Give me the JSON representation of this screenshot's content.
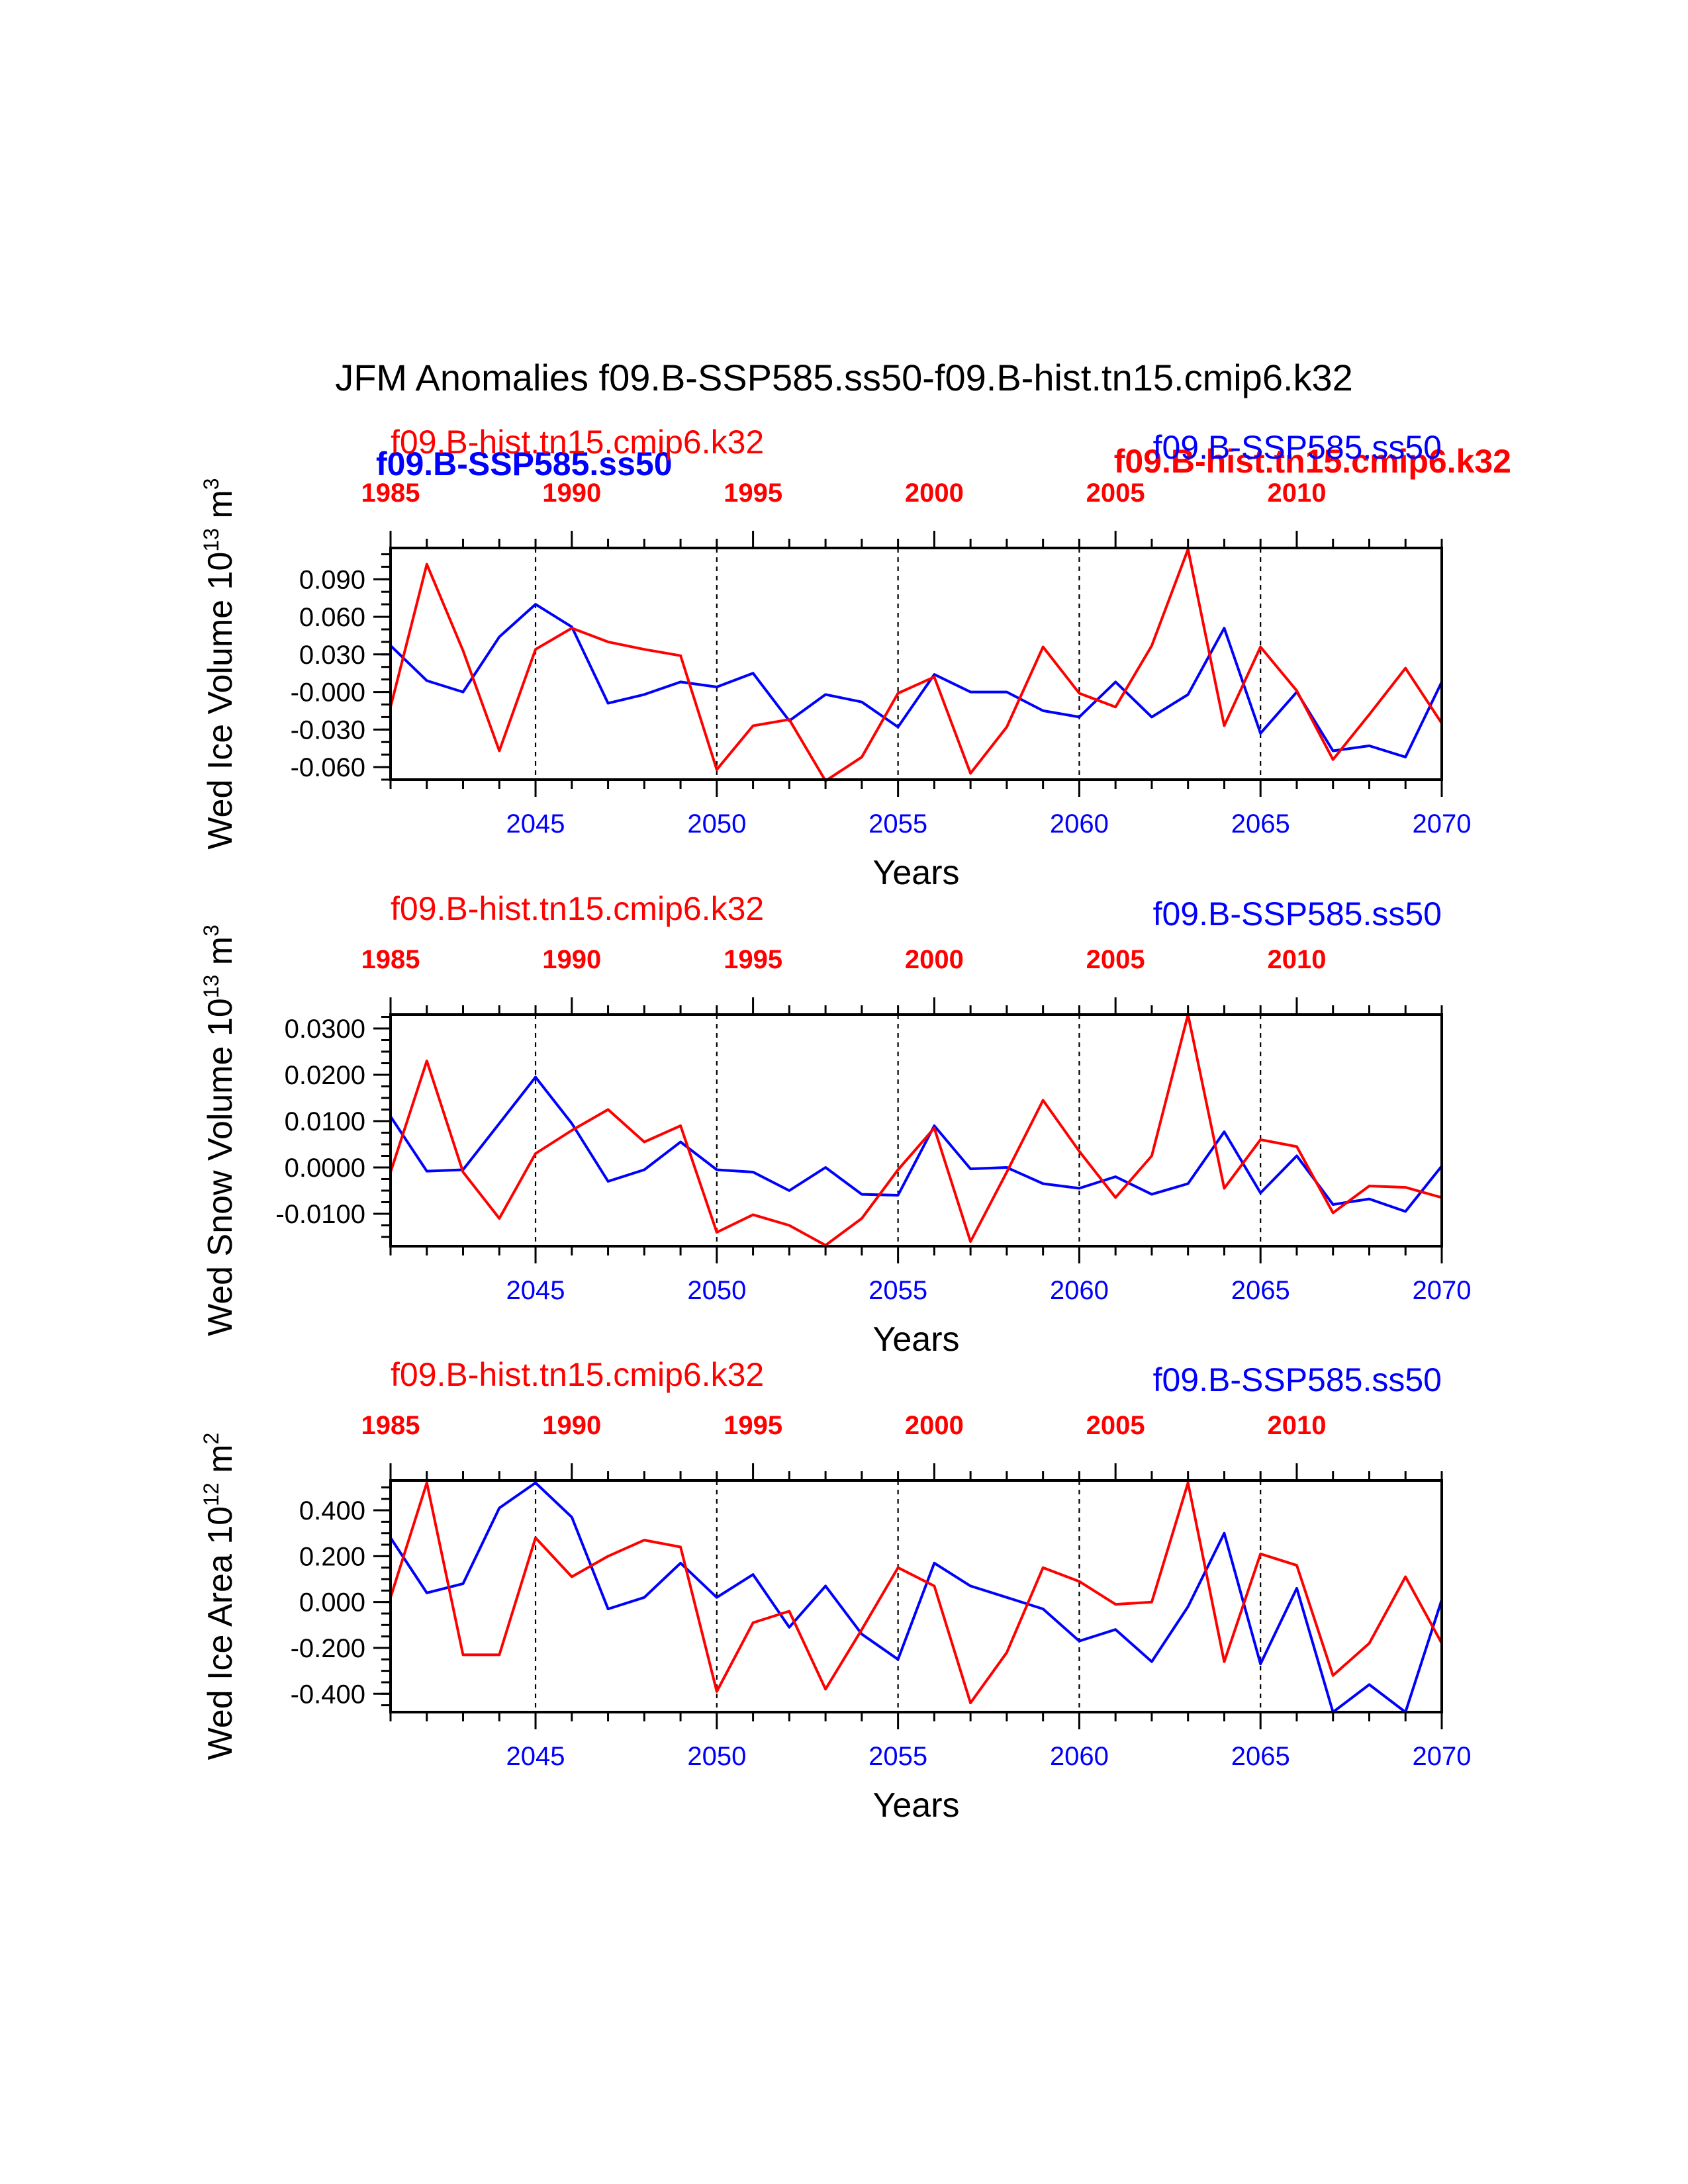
{
  "title": "JFM Anomalies f09.B-SSP585.ss50-f09.B-hist.tn15.cmip6.k32",
  "colors": {
    "hist": "#ff0000",
    "ssp": "#0000ff",
    "axis": "#000000"
  },
  "overlap_labels": {
    "ssp": "f09.B-SSP585.ss50",
    "hist": "f09.B-hist.tn15.cmip6.k32"
  },
  "chart_data": [
    {
      "type": "line",
      "ylabel": "Wed Ice Volume 10",
      "ylabel_sup": "13",
      "ylabel_unit": " m",
      "ylabel_unit_sup": "3",
      "xlabel": "Years",
      "xlim": [
        2041,
        2070
      ],
      "ylim": [
        -0.07,
        0.115
      ],
      "top_xlim": [
        1985,
        2014
      ],
      "x_ticks": [
        2045,
        2050,
        2055,
        2060,
        2065,
        2070
      ],
      "x_tick_labels": [
        "2045",
        "2050",
        "2055",
        "2060",
        "2065",
        "2070"
      ],
      "top_ticks": [
        1985,
        1990,
        1995,
        2000,
        2005,
        2010
      ],
      "top_tick_labels": [
        "1985",
        "1990",
        "1995",
        "2000",
        "2005",
        "2010"
      ],
      "y_ticks": [
        0.09,
        0.06,
        0.03,
        0.0,
        -0.03,
        -0.06
      ],
      "y_tick_labels": [
        "0.090",
        "0.060",
        "0.030",
        "-0.000",
        "-0.030",
        "-0.060"
      ],
      "y_minor_step": 0.01,
      "left_label": "f09.B-hist.tn15.cmip6.k32",
      "right_label": "f09.B-SSP585.ss50",
      "series": [
        {
          "name": "f09.B-SSP585.ss50",
          "color": "#0000ff",
          "x": [
            2041,
            2042,
            2043,
            2044,
            2045,
            2046,
            2047,
            2048,
            2049,
            2050,
            2051,
            2052,
            2053,
            2054,
            2055,
            2056,
            2057,
            2058,
            2059,
            2060,
            2061,
            2062,
            2063,
            2064,
            2065,
            2066,
            2067,
            2068,
            2069,
            2070
          ],
          "values": [
            0.037,
            0.009,
            0.0,
            0.044,
            0.07,
            0.052,
            -0.009,
            -0.002,
            0.008,
            0.004,
            0.015,
            -0.023,
            -0.002,
            -0.008,
            -0.028,
            0.014,
            0.0,
            0.0,
            -0.015,
            -0.02,
            0.008,
            -0.02,
            -0.002,
            0.051,
            -0.033,
            0.0,
            -0.047,
            -0.043,
            -0.052,
            0.008
          ]
        },
        {
          "name": "f09.B-hist.tn15.cmip6.k32",
          "color": "#ff0000",
          "x": [
            2041,
            2042,
            2043,
            2044,
            2045,
            2046,
            2047,
            2048,
            2049,
            2050,
            2051,
            2052,
            2053,
            2054,
            2055,
            2056,
            2057,
            2058,
            2059,
            2060,
            2061,
            2062,
            2063,
            2064,
            2065,
            2066,
            2067,
            2068,
            2069,
            2070
          ],
          "values": [
            -0.012,
            0.102,
            0.033,
            -0.047,
            0.034,
            0.051,
            0.04,
            0.034,
            0.029,
            -0.062,
            -0.027,
            -0.022,
            -0.071,
            -0.052,
            -0.001,
            0.012,
            -0.065,
            -0.028,
            0.036,
            -0.001,
            -0.012,
            0.037,
            0.114,
            -0.027,
            0.036,
            0.001,
            -0.054,
            -0.018,
            0.019,
            -0.025
          ]
        }
      ]
    },
    {
      "type": "line",
      "ylabel": "Wed Snow Volume 10",
      "ylabel_sup": "13",
      "ylabel_unit": " m",
      "ylabel_unit_sup": "3",
      "xlabel": "Years",
      "xlim": [
        2041,
        2070
      ],
      "ylim": [
        -0.017,
        0.033
      ],
      "top_xlim": [
        1985,
        2014
      ],
      "x_ticks": [
        2045,
        2050,
        2055,
        2060,
        2065,
        2070
      ],
      "x_tick_labels": [
        "2045",
        "2050",
        "2055",
        "2060",
        "2065",
        "2070"
      ],
      "top_ticks": [
        1985,
        1990,
        1995,
        2000,
        2005,
        2010
      ],
      "top_tick_labels": [
        "1985",
        "1990",
        "1995",
        "2000",
        "2005",
        "2010"
      ],
      "y_ticks": [
        0.03,
        0.02,
        0.01,
        0.0,
        -0.01
      ],
      "y_tick_labels": [
        "0.0300",
        "0.0200",
        "0.0100",
        "0.0000",
        "-0.0100"
      ],
      "y_minor_step": 0.0025,
      "left_label": "f09.B-hist.tn15.cmip6.k32",
      "right_label": "f09.B-SSP585.ss50",
      "series": [
        {
          "name": "f09.B-SSP585.ss50",
          "color": "#0000ff",
          "x": [
            2041,
            2042,
            2043,
            2044,
            2045,
            2046,
            2047,
            2048,
            2049,
            2050,
            2051,
            2052,
            2053,
            2054,
            2055,
            2056,
            2057,
            2058,
            2059,
            2060,
            2061,
            2062,
            2063,
            2064,
            2065,
            2066,
            2067,
            2068,
            2069,
            2070
          ],
          "values": [
            0.011,
            -0.0008,
            -0.0005,
            0.0095,
            0.0195,
            0.0095,
            -0.003,
            -0.0005,
            0.0055,
            -0.0005,
            -0.001,
            -0.005,
            0.0,
            -0.0058,
            -0.006,
            0.009,
            -0.0003,
            0.0,
            -0.0035,
            -0.0045,
            -0.002,
            -0.0058,
            -0.0035,
            0.0077,
            -0.0055,
            0.0025,
            -0.008,
            -0.0068,
            -0.0095,
            0.0003
          ]
        },
        {
          "name": "f09.B-hist.tn15.cmip6.k32",
          "color": "#ff0000",
          "x": [
            2041,
            2042,
            2043,
            2044,
            2045,
            2046,
            2047,
            2048,
            2049,
            2050,
            2051,
            2052,
            2053,
            2054,
            2055,
            2056,
            2057,
            2058,
            2059,
            2060,
            2061,
            2062,
            2063,
            2064,
            2065,
            2066,
            2067,
            2068,
            2069,
            2070
          ],
          "values": [
            -0.001,
            0.023,
            -0.001,
            -0.011,
            0.003,
            0.008,
            0.0125,
            0.0055,
            0.009,
            -0.014,
            -0.0102,
            -0.0125,
            -0.0168,
            -0.011,
            -0.0005,
            0.0085,
            -0.016,
            -0.001,
            0.0145,
            0.0035,
            -0.0065,
            0.0025,
            0.033,
            -0.0045,
            0.006,
            0.0045,
            -0.0098,
            -0.004,
            -0.0043,
            -0.0065
          ]
        }
      ]
    },
    {
      "type": "line",
      "ylabel": "Wed Ice Area 10",
      "ylabel_sup": "12",
      "ylabel_unit": " m",
      "ylabel_unit_sup": "2",
      "xlabel": "Years",
      "xlim": [
        2041,
        2070
      ],
      "ylim": [
        -0.48,
        0.53
      ],
      "top_xlim": [
        1985,
        2014
      ],
      "x_ticks": [
        2045,
        2050,
        2055,
        2060,
        2065,
        2070
      ],
      "x_tick_labels": [
        "2045",
        "2050",
        "2055",
        "2060",
        "2065",
        "2070"
      ],
      "top_ticks": [
        1985,
        1990,
        1995,
        2000,
        2005,
        2010
      ],
      "top_tick_labels": [
        "1985",
        "1990",
        "1995",
        "2000",
        "2005",
        "2010"
      ],
      "y_ticks": [
        0.4,
        0.2,
        0.0,
        -0.2,
        -0.4
      ],
      "y_tick_labels": [
        "0.400",
        "0.200",
        "0.000",
        "-0.200",
        "-0.400"
      ],
      "y_minor_step": 0.05,
      "left_label": "f09.B-hist.tn15.cmip6.k32",
      "right_label": "f09.B-SSP585.ss50",
      "series": [
        {
          "name": "f09.B-SSP585.ss50",
          "color": "#0000ff",
          "x": [
            2041,
            2042,
            2043,
            2044,
            2045,
            2046,
            2047,
            2048,
            2049,
            2050,
            2051,
            2052,
            2053,
            2054,
            2055,
            2056,
            2057,
            2058,
            2059,
            2060,
            2061,
            2062,
            2063,
            2064,
            2065,
            2066,
            2067,
            2068,
            2069,
            2070
          ],
          "values": [
            0.28,
            0.04,
            0.08,
            0.41,
            0.52,
            0.37,
            -0.03,
            0.02,
            0.17,
            0.02,
            0.12,
            -0.11,
            0.07,
            -0.14,
            -0.25,
            0.17,
            0.07,
            0.02,
            -0.03,
            -0.17,
            -0.12,
            -0.26,
            -0.02,
            0.3,
            -0.27,
            0.06,
            -0.48,
            -0.36,
            -0.48,
            0.01
          ]
        },
        {
          "name": "f09.B-hist.tn15.cmip6.k32",
          "color": "#ff0000",
          "x": [
            2041,
            2042,
            2043,
            2044,
            2045,
            2046,
            2047,
            2048,
            2049,
            2050,
            2051,
            2052,
            2053,
            2054,
            2055,
            2056,
            2057,
            2058,
            2059,
            2060,
            2061,
            2062,
            2063,
            2064,
            2065,
            2066,
            2067,
            2068,
            2069,
            2070
          ],
          "values": [
            0.02,
            0.52,
            -0.23,
            -0.23,
            0.28,
            0.11,
            0.2,
            0.27,
            0.24,
            -0.39,
            -0.09,
            -0.04,
            -0.38,
            -0.12,
            0.15,
            0.07,
            -0.44,
            -0.22,
            0.15,
            0.09,
            -0.01,
            0.0,
            0.52,
            -0.26,
            0.21,
            0.16,
            -0.32,
            -0.18,
            0.11,
            -0.18
          ]
        }
      ]
    }
  ]
}
